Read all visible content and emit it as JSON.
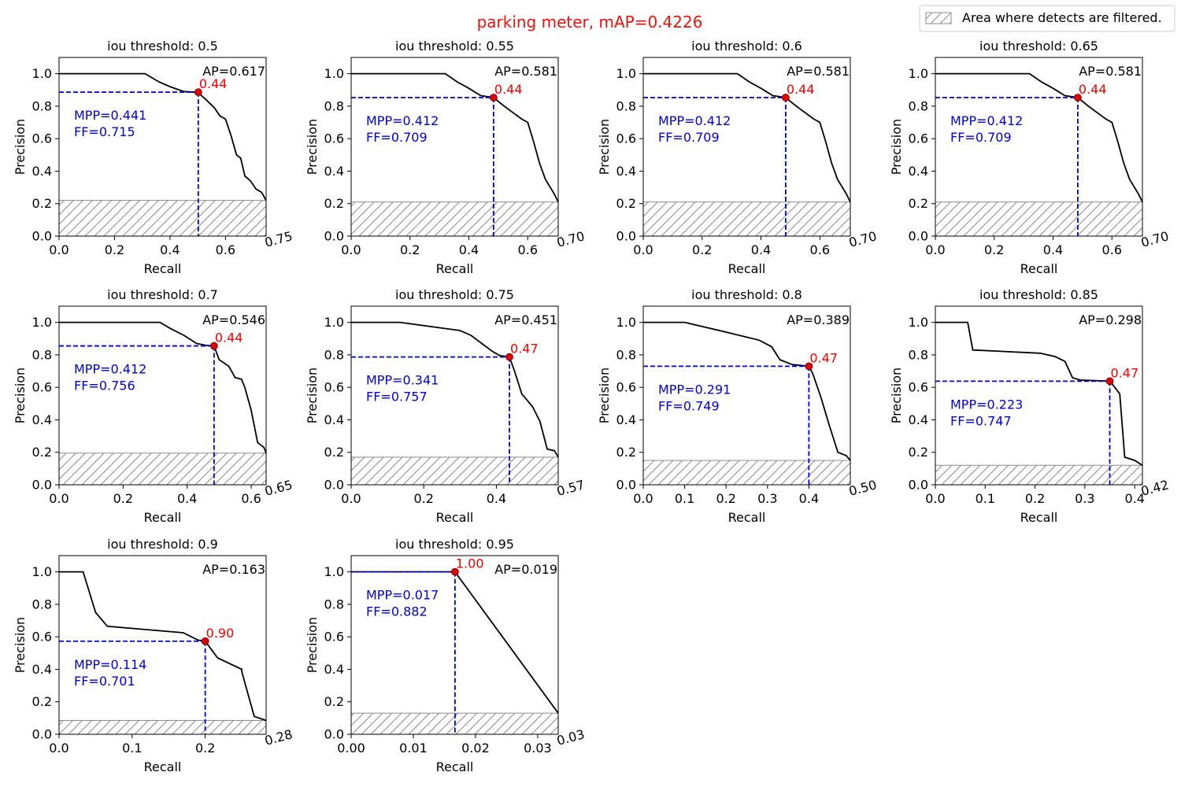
{
  "figure": {
    "title": "parking meter, mAP=0.4226",
    "title_color": "#e8120f",
    "legend": {
      "label": "Area where detects are filtered.",
      "placement": "top-right",
      "hatch_color": "#8c8c8c"
    },
    "colors": {
      "curve": "#000000",
      "guide": "#0000cc",
      "marker": "#dd0000",
      "mpp_text": "#0000cc",
      "threshold_text": "#ee0000"
    }
  },
  "chart_data": [
    {
      "type": "line",
      "title": "iou threshold: 0.5",
      "xlabel": "Recall",
      "ylabel": "Precision",
      "xlim": [
        0,
        0.7466
      ],
      "ylim": [
        0,
        1.1
      ],
      "x_ticks": [
        "0.0",
        "0.2",
        "0.4",
        "0.6"
      ],
      "x_ticks_values": [
        0.0,
        0.2,
        0.4,
        0.6
      ],
      "x_end_label": "0.75",
      "y_ticks": [
        "0.0",
        "0.2",
        "0.4",
        "0.6",
        "0.8",
        "1.0"
      ],
      "ap_label": "AP=0.617",
      "mpp_label": "MPP=0.441",
      "ff_label": "FF=0.715",
      "point": {
        "x": 0.502,
        "y": 0.886,
        "label": "0.44"
      },
      "filter_level": 0.22,
      "curve": {
        "x": [
          0,
          0.31,
          0.36,
          0.4,
          0.45,
          0.5,
          0.53,
          0.56,
          0.58,
          0.6,
          0.62,
          0.64,
          0.655,
          0.67,
          0.69,
          0.71,
          0.73,
          0.7466
        ],
        "y": [
          1.0,
          1.0,
          0.95,
          0.92,
          0.89,
          0.886,
          0.84,
          0.79,
          0.74,
          0.72,
          0.62,
          0.5,
          0.48,
          0.37,
          0.34,
          0.29,
          0.27,
          0.22
        ]
      }
    },
    {
      "type": "line",
      "title": "iou threshold: 0.55",
      "xlabel": "Recall",
      "ylabel": "Precision",
      "xlim": [
        0,
        0.7036
      ],
      "ylim": [
        0,
        1.1
      ],
      "x_ticks": [
        "0.0",
        "0.2",
        "0.4",
        "0.6"
      ],
      "x_ticks_values": [
        0.0,
        0.2,
        0.4,
        0.6
      ],
      "x_end_label": "0.70",
      "y_ticks": [
        "0.0",
        "0.2",
        "0.4",
        "0.6",
        "0.8",
        "1.0"
      ],
      "ap_label": "AP=0.581",
      "mpp_label": "MPP=0.412",
      "ff_label": "FF=0.709",
      "point": {
        "x": 0.484,
        "y": 0.853,
        "label": "0.44"
      },
      "filter_level": 0.21,
      "curve": {
        "x": [
          0,
          0.32,
          0.36,
          0.4,
          0.44,
          0.484,
          0.52,
          0.55,
          0.58,
          0.6,
          0.62,
          0.64,
          0.66,
          0.69,
          0.7036
        ],
        "y": [
          1.0,
          1.0,
          0.95,
          0.91,
          0.865,
          0.853,
          0.8,
          0.76,
          0.72,
          0.7,
          0.58,
          0.45,
          0.35,
          0.26,
          0.21
        ]
      }
    },
    {
      "type": "line",
      "title": "iou threshold: 0.6",
      "xlabel": "Recall",
      "ylabel": "Precision",
      "xlim": [
        0,
        0.7036
      ],
      "ylim": [
        0,
        1.1
      ],
      "x_ticks": [
        "0.0",
        "0.2",
        "0.4",
        "0.6"
      ],
      "x_ticks_values": [
        0.0,
        0.2,
        0.4,
        0.6
      ],
      "x_end_label": "0.70",
      "y_ticks": [
        "0.0",
        "0.2",
        "0.4",
        "0.6",
        "0.8",
        "1.0"
      ],
      "ap_label": "AP=0.581",
      "mpp_label": "MPP=0.412",
      "ff_label": "FF=0.709",
      "point": {
        "x": 0.484,
        "y": 0.853,
        "label": "0.44"
      },
      "filter_level": 0.21,
      "curve": {
        "x": [
          0,
          0.32,
          0.36,
          0.4,
          0.44,
          0.484,
          0.52,
          0.55,
          0.58,
          0.6,
          0.62,
          0.64,
          0.66,
          0.69,
          0.7036
        ],
        "y": [
          1.0,
          1.0,
          0.95,
          0.91,
          0.865,
          0.853,
          0.8,
          0.76,
          0.72,
          0.7,
          0.58,
          0.45,
          0.35,
          0.26,
          0.21
        ]
      }
    },
    {
      "type": "line",
      "title": "iou threshold: 0.65",
      "xlabel": "Recall",
      "ylabel": "Precision",
      "xlim": [
        0,
        0.7036
      ],
      "ylim": [
        0,
        1.1
      ],
      "x_ticks": [
        "0.0",
        "0.2",
        "0.4",
        "0.6"
      ],
      "x_ticks_values": [
        0.0,
        0.2,
        0.4,
        0.6
      ],
      "x_end_label": "0.70",
      "y_ticks": [
        "0.0",
        "0.2",
        "0.4",
        "0.6",
        "0.8",
        "1.0"
      ],
      "ap_label": "AP=0.581",
      "mpp_label": "MPP=0.412",
      "ff_label": "FF=0.709",
      "point": {
        "x": 0.484,
        "y": 0.853,
        "label": "0.44"
      },
      "filter_level": 0.21,
      "curve": {
        "x": [
          0,
          0.32,
          0.36,
          0.4,
          0.44,
          0.484,
          0.52,
          0.55,
          0.58,
          0.6,
          0.62,
          0.64,
          0.66,
          0.69,
          0.7036
        ],
        "y": [
          1.0,
          1.0,
          0.95,
          0.91,
          0.865,
          0.853,
          0.8,
          0.76,
          0.72,
          0.7,
          0.58,
          0.45,
          0.35,
          0.26,
          0.21
        ]
      }
    },
    {
      "type": "line",
      "title": "iou threshold: 0.7",
      "xlabel": "Recall",
      "ylabel": "Precision",
      "xlim": [
        0,
        0.6466
      ],
      "ylim": [
        0,
        1.1
      ],
      "x_ticks": [
        "0.0",
        "0.2",
        "0.4",
        "0.6"
      ],
      "x_ticks_values": [
        0.0,
        0.2,
        0.4,
        0.6
      ],
      "x_end_label": "0.65",
      "y_ticks": [
        "0.0",
        "0.2",
        "0.4",
        "0.6",
        "0.8",
        "1.0"
      ],
      "ap_label": "AP=0.546",
      "mpp_label": "MPP=0.412",
      "ff_label": "FF=0.756",
      "point": {
        "x": 0.484,
        "y": 0.855,
        "label": "0.44"
      },
      "filter_level": 0.195,
      "curve": {
        "x": [
          0,
          0.315,
          0.35,
          0.39,
          0.43,
          0.46,
          0.484,
          0.5,
          0.53,
          0.55,
          0.57,
          0.58,
          0.6,
          0.62,
          0.64,
          0.6466
        ],
        "y": [
          1.0,
          1.0,
          0.96,
          0.92,
          0.87,
          0.858,
          0.855,
          0.77,
          0.73,
          0.66,
          0.65,
          0.6,
          0.46,
          0.26,
          0.23,
          0.195
        ]
      }
    },
    {
      "type": "line",
      "title": "iou threshold: 0.75",
      "xlabel": "Recall",
      "ylabel": "Precision",
      "xlim": [
        0,
        0.5704
      ],
      "ylim": [
        0,
        1.1
      ],
      "x_ticks": [
        "0.0",
        "0.2",
        "0.4"
      ],
      "x_ticks_values": [
        0.0,
        0.2,
        0.4
      ],
      "x_end_label": "0.57",
      "y_ticks": [
        "0.0",
        "0.2",
        "0.4",
        "0.6",
        "0.8",
        "1.0"
      ],
      "ap_label": "AP=0.451",
      "mpp_label": "MPP=0.341",
      "ff_label": "FF=0.757",
      "point": {
        "x": 0.436,
        "y": 0.787,
        "label": "0.47"
      },
      "filter_level": 0.17,
      "curve": {
        "x": [
          0,
          0.135,
          0.3,
          0.33,
          0.36,
          0.39,
          0.41,
          0.436,
          0.45,
          0.47,
          0.5,
          0.52,
          0.54,
          0.56,
          0.5704
        ],
        "y": [
          1.0,
          1.0,
          0.95,
          0.92,
          0.87,
          0.82,
          0.795,
          0.787,
          0.7,
          0.56,
          0.48,
          0.39,
          0.22,
          0.21,
          0.17
        ]
      }
    },
    {
      "type": "line",
      "title": "iou threshold: 0.8",
      "xlabel": "Recall",
      "ylabel": "Precision",
      "xlim": [
        0,
        0.5
      ],
      "ylim": [
        0,
        1.1
      ],
      "x_ticks": [
        "0.0",
        "0.1",
        "0.2",
        "0.3",
        "0.4"
      ],
      "x_ticks_values": [
        0.0,
        0.1,
        0.2,
        0.3,
        0.4
      ],
      "x_end_label": "0.50",
      "y_ticks": [
        "0.0",
        "0.2",
        "0.4",
        "0.6",
        "0.8",
        "1.0"
      ],
      "ap_label": "AP=0.389",
      "mpp_label": "MPP=0.291",
      "ff_label": "FF=0.749",
      "point": {
        "x": 0.4,
        "y": 0.73,
        "label": "0.47"
      },
      "filter_level": 0.15,
      "curve": {
        "x": [
          0,
          0.1,
          0.2,
          0.28,
          0.31,
          0.33,
          0.36,
          0.38,
          0.4,
          0.41,
          0.43,
          0.45,
          0.47,
          0.49,
          0.5
        ],
        "y": [
          1.0,
          1.0,
          0.94,
          0.89,
          0.85,
          0.77,
          0.74,
          0.735,
          0.73,
          0.68,
          0.53,
          0.36,
          0.2,
          0.18,
          0.15
        ]
      }
    },
    {
      "type": "line",
      "title": "iou threshold: 0.85",
      "xlabel": "Recall",
      "ylabel": "Precision",
      "xlim": [
        0,
        0.4155
      ],
      "ylim": [
        0,
        1.1
      ],
      "x_ticks": [
        "0.0",
        "0.1",
        "0.2",
        "0.3",
        "0.4"
      ],
      "x_ticks_values": [
        0.0,
        0.1,
        0.2,
        0.3,
        0.4
      ],
      "x_end_label": "0.42",
      "y_ticks": [
        "0.0",
        "0.2",
        "0.4",
        "0.6",
        "0.8",
        "1.0"
      ],
      "ap_label": "AP=0.298",
      "mpp_label": "MPP=0.223",
      "ff_label": "FF=0.747",
      "point": {
        "x": 0.35,
        "y": 0.638,
        "label": "0.47"
      },
      "filter_level": 0.12,
      "curve": {
        "x": [
          0,
          0.065,
          0.075,
          0.21,
          0.24,
          0.26,
          0.275,
          0.29,
          0.35,
          0.355,
          0.37,
          0.38,
          0.4,
          0.4155
        ],
        "y": [
          1.0,
          1.0,
          0.83,
          0.81,
          0.79,
          0.76,
          0.66,
          0.645,
          0.638,
          0.62,
          0.56,
          0.17,
          0.15,
          0.12
        ]
      }
    },
    {
      "type": "line",
      "title": "iou threshold: 0.9",
      "xlabel": "Recall",
      "ylabel": "Precision",
      "xlim": [
        0,
        0.2833
      ],
      "ylim": [
        0,
        1.1
      ],
      "x_ticks": [
        "0.0",
        "0.1",
        "0.2"
      ],
      "x_ticks_values": [
        0.0,
        0.1,
        0.2
      ],
      "x_end_label": "0.28",
      "y_ticks": [
        "0.0",
        "0.2",
        "0.4",
        "0.6",
        "0.8",
        "1.0"
      ],
      "ap_label": "AP=0.163",
      "mpp_label": "MPP=0.114",
      "ff_label": "FF=0.701",
      "point": {
        "x": 0.2,
        "y": 0.573,
        "label": "0.90"
      },
      "filter_level": 0.085,
      "curve": {
        "x": [
          0,
          0.033,
          0.05,
          0.066,
          0.17,
          0.19,
          0.2,
          0.217,
          0.25,
          0.25,
          0.267,
          0.28,
          0.2833
        ],
        "y": [
          1.0,
          1.0,
          0.75,
          0.665,
          0.625,
          0.58,
          0.573,
          0.47,
          0.4,
          0.385,
          0.11,
          0.09,
          0.085
        ]
      }
    },
    {
      "type": "line",
      "title": "iou threshold: 0.95",
      "xlabel": "Recall",
      "ylabel": "Precision",
      "xlim": [
        0,
        0.0333
      ],
      "ylim": [
        0,
        1.1
      ],
      "x_ticks": [
        "0.00",
        "0.01",
        "0.02",
        "0.03"
      ],
      "x_ticks_values": [
        0.0,
        0.01,
        0.02,
        0.03
      ],
      "x_end_label": "0.03",
      "y_ticks": [
        "0.0",
        "0.2",
        "0.4",
        "0.6",
        "0.8",
        "1.0"
      ],
      "ap_label": "AP=0.019",
      "mpp_label": "MPP=0.017",
      "ff_label": "FF=0.882",
      "point": {
        "x": 0.0167,
        "y": 1.0,
        "label": "1.00"
      },
      "filter_level": 0.13,
      "curve": {
        "x": [
          0,
          0.0167,
          0.0333
        ],
        "y": [
          1.0,
          1.0,
          0.13
        ]
      }
    }
  ]
}
